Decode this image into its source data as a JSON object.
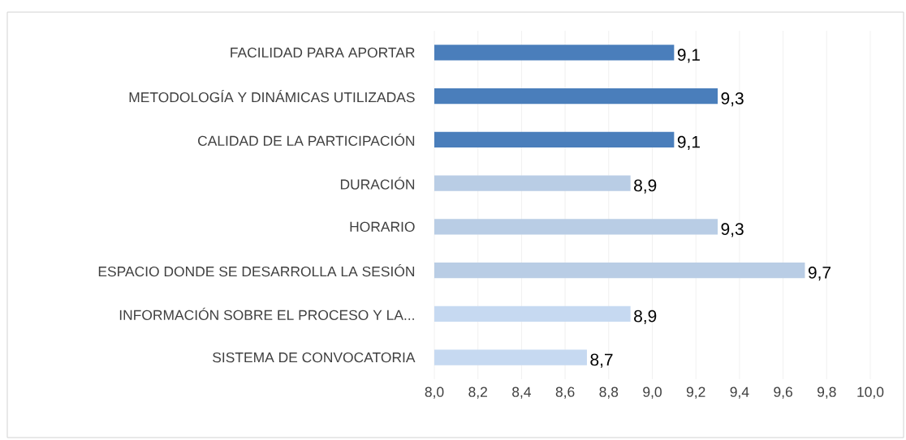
{
  "chart_data": {
    "type": "bar",
    "orientation": "horizontal",
    "categories": [
      "FACILIDAD PARA APORTAR",
      "METODOLOGÍA Y DINÁMICAS UTILIZADAS",
      "CALIDAD DE LA PARTICIPACIÓN",
      "DURACIÓN",
      "HORARIO",
      "ESPACIO DONDE SE DESARROLLA LA SESIÓN",
      "INFORMACIÓN SOBRE EL PROCESO Y LA...",
      "SISTEMA DE CONVOCATORIA"
    ],
    "values": [
      9.1,
      9.3,
      9.1,
      8.9,
      9.3,
      9.7,
      8.9,
      8.7
    ],
    "value_labels": [
      "9,1",
      "9,3",
      "9,1",
      "8,9",
      "9,3",
      "9,7",
      "8,9",
      "8,7"
    ],
    "colors": [
      "#4a7ebb",
      "#4a7ebb",
      "#4a7ebb",
      "#b9cde5",
      "#b9cde5",
      "#b9cde5",
      "#c6d9f1",
      "#c6d9f1"
    ],
    "xlim": [
      8.0,
      10.0
    ],
    "xticks": [
      {
        "value": 8.0,
        "label": "8,0"
      },
      {
        "value": 8.2,
        "label": "8,2"
      },
      {
        "value": 8.4,
        "label": "8,4"
      },
      {
        "value": 8.6,
        "label": "8,6"
      },
      {
        "value": 8.8,
        "label": "8,8"
      },
      {
        "value": 9.0,
        "label": "9,0"
      },
      {
        "value": 9.2,
        "label": "9,2"
      },
      {
        "value": 9.4,
        "label": "9,4"
      },
      {
        "value": 9.6,
        "label": "9,6"
      },
      {
        "value": 9.8,
        "label": "9,8"
      },
      {
        "value": 10.0,
        "label": "10,0"
      }
    ],
    "grid": "x"
  }
}
